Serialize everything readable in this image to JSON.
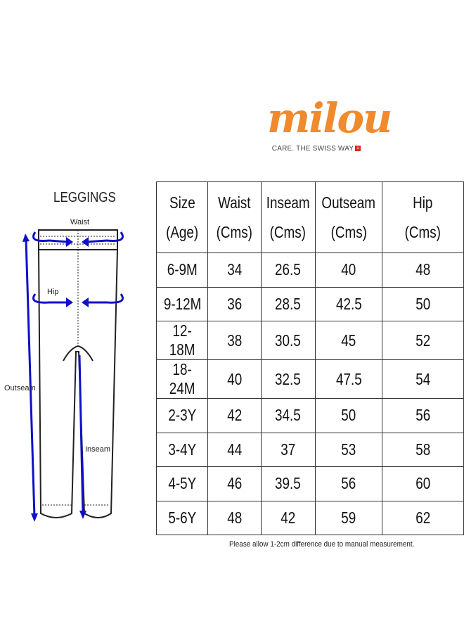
{
  "logo": {
    "word": "milou",
    "tagline": "CARE. THE SWISS WAY",
    "brand_color": "#f08a2c"
  },
  "diagram": {
    "title": "LEGGINGS",
    "labels": {
      "waist": "Waist",
      "hip": "Hip",
      "outseam": "Outseam",
      "inseam": "Inseam"
    },
    "arrow_color": "#1010c8"
  },
  "table": {
    "headers": [
      [
        "Size",
        "(Age)"
      ],
      [
        "Waist",
        "(Cms)"
      ],
      [
        "Inseam",
        "(Cms)"
      ],
      [
        "Outseam",
        "(Cms)"
      ],
      [
        "Hip",
        "(Cms)"
      ]
    ],
    "rows": [
      [
        "6-9M",
        "34",
        "26.5",
        "40",
        "48"
      ],
      [
        "9-12M",
        "36",
        "28.5",
        "42.5",
        "50"
      ],
      [
        "12-18M",
        "38",
        "30.5",
        "45",
        "52"
      ],
      [
        "18-24M",
        "40",
        "32.5",
        "47.5",
        "54"
      ],
      [
        "2-3Y",
        "42",
        "34.5",
        "50",
        "56"
      ],
      [
        "3-4Y",
        "44",
        "37",
        "53",
        "58"
      ],
      [
        "4-5Y",
        "46",
        "39.5",
        "56",
        "60"
      ],
      [
        "5-6Y",
        "48",
        "42",
        "59",
        "62"
      ]
    ]
  },
  "note": "Please allow 1-2cm difference due to manual measurement."
}
